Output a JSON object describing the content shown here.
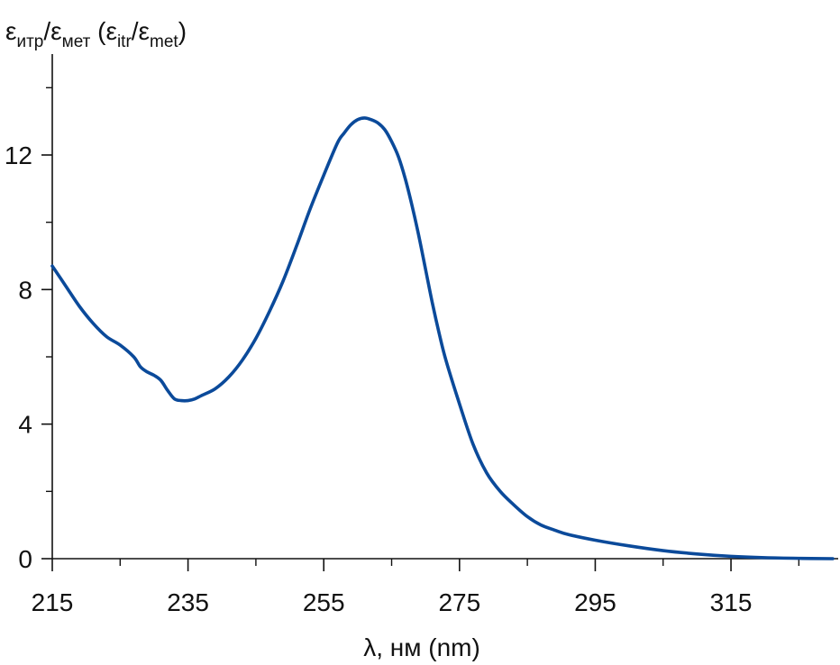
{
  "chart_data": {
    "type": "line",
    "ylabel": {
      "eps1": "ε",
      "sub1": "итр",
      "slash1": "/",
      "eps2": "ε",
      "sub2": "мет",
      "paren_open": " (",
      "eps3": "ε",
      "sub3": "itr",
      "slash2": "/",
      "eps4": "ε",
      "sub4": "met",
      "paren_close": ")"
    },
    "xlabel": "λ, нм (nm)",
    "xlim": [
      215,
      330
    ],
    "ylim": [
      0,
      15
    ],
    "x_ticks": [
      215,
      235,
      255,
      275,
      295,
      315
    ],
    "x_tick_labels": [
      "215",
      "235",
      "255",
      "275",
      "295",
      "315"
    ],
    "x_minor_ticks": [
      225,
      245,
      265,
      285,
      305,
      325
    ],
    "y_ticks": [
      0,
      4,
      8,
      12
    ],
    "y_tick_labels": [
      "0",
      "4",
      "8",
      "12"
    ],
    "y_minor_ticks": [
      2,
      6,
      10,
      14
    ],
    "grid": false,
    "line_color": "#0b4a9a",
    "series": [
      {
        "x": [
          215,
          217,
          219,
          221,
          223,
          225,
          227,
          228,
          229,
          230,
          231,
          232,
          233,
          234,
          235,
          236,
          237,
          239,
          241,
          243,
          245,
          247,
          249,
          251,
          253,
          255,
          257,
          258,
          259,
          260,
          261,
          262,
          263,
          264,
          265,
          266,
          267,
          268,
          269,
          270,
          271,
          272,
          273,
          275,
          277,
          279,
          281,
          283,
          285,
          287,
          289,
          291,
          295,
          300,
          305,
          310,
          315,
          320,
          325,
          330
        ],
        "values": [
          8.7,
          8.1,
          7.5,
          7.0,
          6.6,
          6.35,
          6.0,
          5.7,
          5.55,
          5.45,
          5.3,
          5.0,
          4.75,
          4.7,
          4.7,
          4.75,
          4.85,
          5.05,
          5.4,
          5.9,
          6.55,
          7.35,
          8.25,
          9.3,
          10.4,
          11.4,
          12.35,
          12.65,
          12.9,
          13.05,
          13.1,
          13.05,
          12.95,
          12.75,
          12.4,
          11.95,
          11.3,
          10.5,
          9.6,
          8.6,
          7.6,
          6.7,
          5.9,
          4.6,
          3.4,
          2.55,
          2.0,
          1.6,
          1.25,
          1.0,
          0.85,
          0.72,
          0.55,
          0.38,
          0.24,
          0.14,
          0.07,
          0.03,
          0.01,
          0.0
        ]
      }
    ]
  }
}
